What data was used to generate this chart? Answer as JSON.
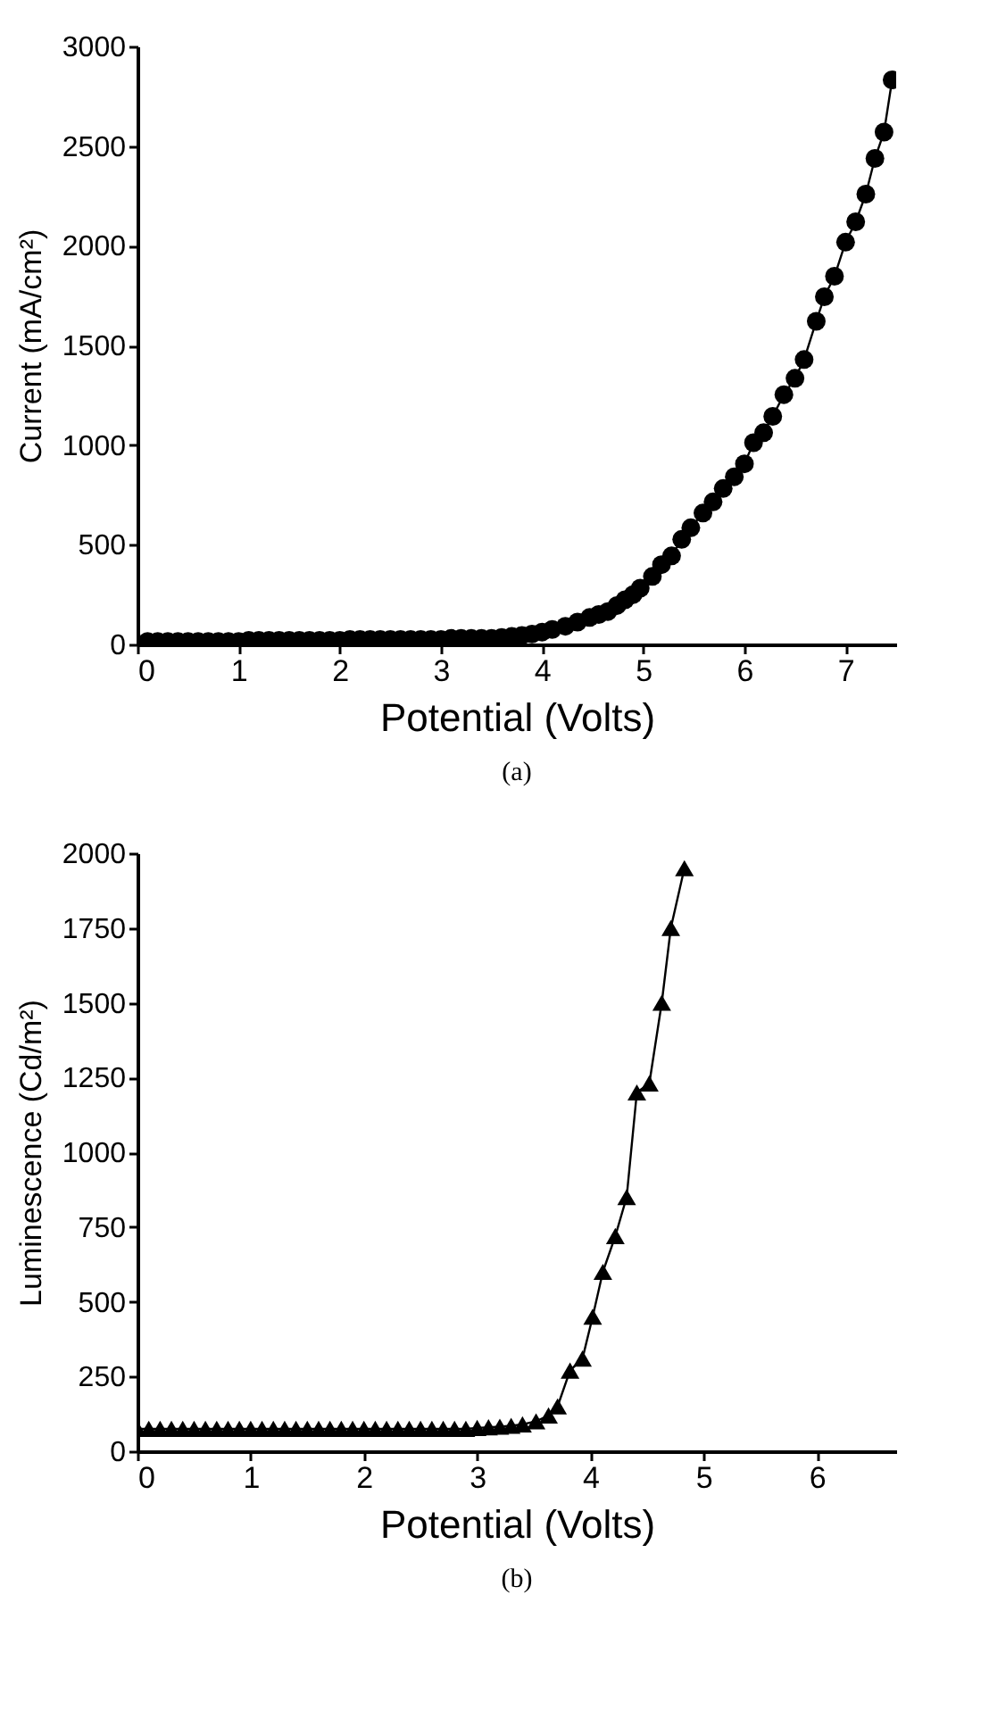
{
  "chart_data": [
    {
      "type": "line",
      "xlabel": "Potential (Volts)",
      "ylabel": "Current (mA/cm²)",
      "annotations": [
        "(a)"
      ],
      "marker": "circle",
      "line_style": "solid",
      "xlim": [
        0,
        7.5
      ],
      "xticks": [
        0,
        1,
        2,
        3,
        4,
        5,
        6,
        7
      ],
      "ylim": [
        0,
        3000
      ],
      "yticks": [
        0,
        500,
        1000,
        1500,
        2000,
        2500,
        3000
      ],
      "series": [
        {
          "color": "#000000",
          "x": [
            0.1,
            0.2,
            0.3,
            0.4,
            0.5,
            0.6,
            0.7,
            0.8,
            0.9,
            1.0,
            1.1,
            1.2,
            1.3,
            1.4,
            1.5,
            1.6,
            1.7,
            1.8,
            1.9,
            2.0,
            2.1,
            2.2,
            2.3,
            2.4,
            2.5,
            2.6,
            2.7,
            2.8,
            2.9,
            3.0,
            3.1,
            3.2,
            3.3,
            3.4,
            3.5,
            3.6,
            3.7,
            3.8,
            3.9,
            4.0,
            4.1,
            4.23,
            4.35,
            4.47,
            4.56,
            4.65,
            4.74,
            4.82,
            4.9,
            4.97,
            5.09,
            5.18,
            5.28,
            5.38,
            5.47,
            5.59,
            5.69,
            5.79,
            5.9,
            6.0,
            6.09,
            6.19,
            6.28,
            6.39,
            6.5,
            6.59,
            6.71,
            6.79,
            6.89,
            7.0,
            7.1,
            7.2,
            7.29,
            7.38,
            7.46
          ],
          "values": [
            15,
            15,
            15,
            15,
            15,
            15,
            15,
            15,
            15,
            15,
            20,
            20,
            20,
            20,
            20,
            20,
            20,
            20,
            20,
            20,
            25,
            25,
            25,
            25,
            25,
            25,
            25,
            25,
            25,
            25,
            30,
            30,
            30,
            30,
            30,
            35,
            40,
            45,
            52,
            62,
            75,
            91,
            112,
            135,
            150,
            165,
            195,
            224,
            250,
            282,
            341,
            400,
            444,
            527,
            585,
            659,
            715,
            782,
            841,
            906,
            1012,
            1062,
            1144,
            1253,
            1335,
            1429,
            1621,
            1744,
            1847,
            2018,
            2120,
            2259,
            2438,
            2570,
            2832
          ]
        }
      ]
    },
    {
      "type": "line",
      "xlabel": "Potential (Volts)",
      "ylabel": "Luminescence (Cd/m²)",
      "annotations": [
        "(b)"
      ],
      "marker": "triangle",
      "line_style": "solid",
      "xlim": [
        0,
        6.7
      ],
      "xticks": [
        0,
        1,
        2,
        3,
        4,
        5,
        6
      ],
      "ylim": [
        0,
        2000
      ],
      "yticks": [
        0,
        250,
        500,
        750,
        1000,
        1250,
        1500,
        1750,
        2000
      ],
      "series": [
        {
          "color": "#000000",
          "x": [
            0.0,
            0.1,
            0.2,
            0.3,
            0.4,
            0.5,
            0.6,
            0.7,
            0.8,
            0.9,
            1.0,
            1.1,
            1.2,
            1.3,
            1.4,
            1.5,
            1.6,
            1.7,
            1.8,
            1.9,
            2.0,
            2.1,
            2.2,
            2.3,
            2.4,
            2.5,
            2.6,
            2.7,
            2.8,
            2.9,
            3.0,
            3.1,
            3.2,
            3.3,
            3.4,
            3.52,
            3.63,
            3.71,
            3.82,
            3.93,
            4.02,
            4.11,
            4.22,
            4.32,
            4.41,
            4.52,
            4.63,
            4.71,
            4.83
          ],
          "values": [
            75,
            75,
            75,
            75,
            75,
            75,
            75,
            75,
            75,
            75,
            75,
            75,
            75,
            75,
            75,
            75,
            75,
            75,
            75,
            75,
            75,
            75,
            75,
            75,
            75,
            75,
            75,
            75,
            75,
            75,
            78,
            80,
            82,
            85,
            90,
            100,
            120,
            150,
            270,
            310,
            450,
            600,
            720,
            850,
            1200,
            1230,
            1500,
            1750,
            1950
          ]
        }
      ]
    }
  ]
}
